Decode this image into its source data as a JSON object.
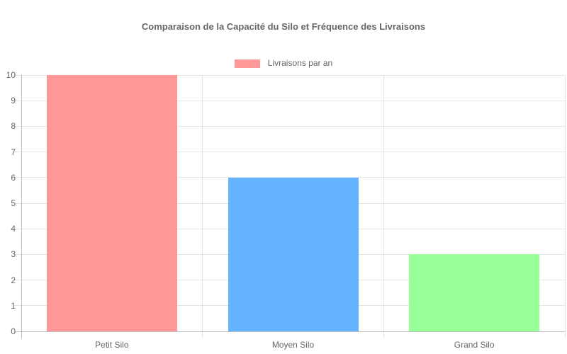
{
  "chart_data": {
    "type": "bar",
    "title": "Comparaison de la Capacité du Silo et Fréquence des Livraisons",
    "categories": [
      "Petit Silo",
      "Moyen Silo",
      "Grand Silo"
    ],
    "series": [
      {
        "name": "Livraisons par an",
        "values": [
          10,
          6,
          3
        ],
        "colors": [
          "#ff9999",
          "#66b3ff",
          "#99ff99"
        ]
      }
    ],
    "xlabel": "",
    "ylabel": "",
    "ylim": [
      0,
      10
    ],
    "yticks": [
      0,
      1,
      2,
      3,
      4,
      5,
      6,
      7,
      8,
      9,
      10
    ],
    "grid": true,
    "legend_position": "top"
  },
  "style": {
    "text_color": "#666666",
    "grid_color": "rgba(0,0,0,0.1)",
    "axis_color": "rgba(0,0,0,0.25)",
    "background": "#ffffff"
  }
}
